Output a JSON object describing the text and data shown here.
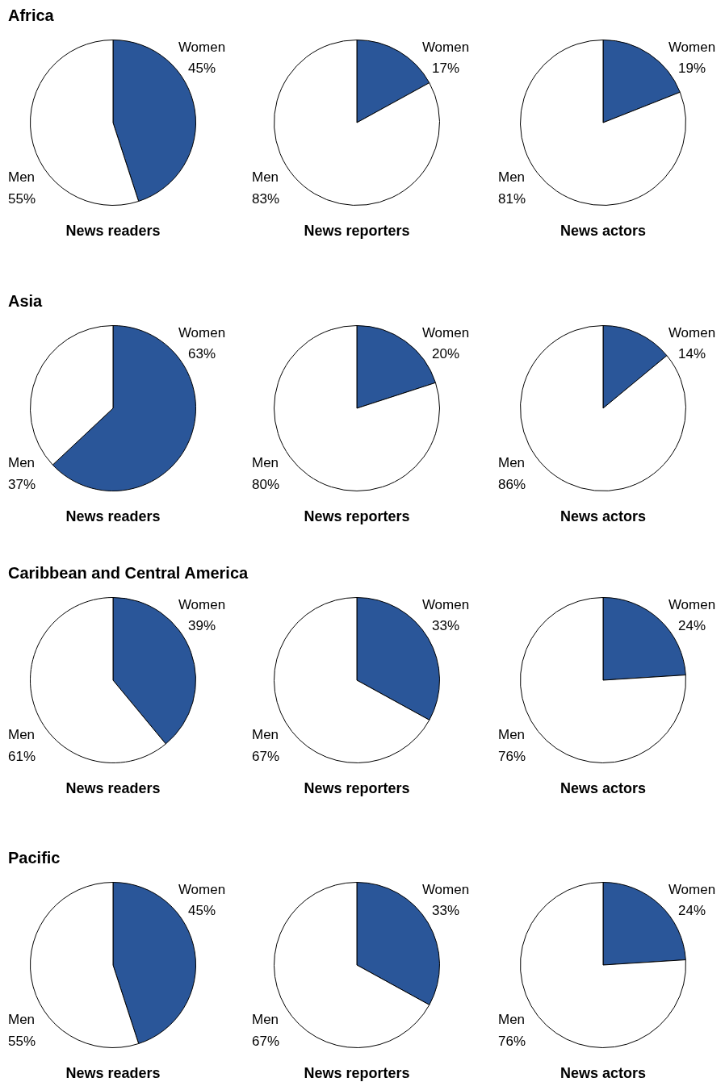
{
  "chart_data": [
    {
      "type": "pie",
      "title": "Africa",
      "subtitle": "News readers",
      "categories": [
        "Women",
        "Men"
      ],
      "values": [
        45,
        55
      ],
      "value_labels": [
        "45%",
        "55%"
      ],
      "colors": [
        "#2a5699",
        "#ffffff"
      ]
    },
    {
      "type": "pie",
      "subtitle": "News reporters",
      "categories": [
        "Women",
        "Men"
      ],
      "values": [
        17,
        83
      ],
      "value_labels": [
        "17%",
        "83%"
      ],
      "colors": [
        "#2a5699",
        "#ffffff"
      ]
    },
    {
      "type": "pie",
      "subtitle": "News actors",
      "categories": [
        "Women",
        "Men"
      ],
      "values": [
        19,
        81
      ],
      "value_labels": [
        "19%",
        "81%"
      ],
      "colors": [
        "#2a5699",
        "#ffffff"
      ]
    },
    {
      "type": "pie",
      "title": "Asia",
      "subtitle": "News readers",
      "categories": [
        "Women",
        "Men"
      ],
      "values": [
        63,
        37
      ],
      "value_labels": [
        "63%",
        "37%"
      ],
      "colors": [
        "#2a5699",
        "#ffffff"
      ]
    },
    {
      "type": "pie",
      "subtitle": "News reporters",
      "categories": [
        "Women",
        "Men"
      ],
      "values": [
        20,
        80
      ],
      "value_labels": [
        "20%",
        "80%"
      ],
      "colors": [
        "#2a5699",
        "#ffffff"
      ]
    },
    {
      "type": "pie",
      "subtitle": "News actors",
      "categories": [
        "Women",
        "Men"
      ],
      "values": [
        14,
        86
      ],
      "value_labels": [
        "14%",
        "86%"
      ],
      "colors": [
        "#2a5699",
        "#ffffff"
      ]
    },
    {
      "type": "pie",
      "title": "Caribbean and Central America",
      "subtitle": "News readers",
      "categories": [
        "Women",
        "Men"
      ],
      "values": [
        39,
        61
      ],
      "value_labels": [
        "39%",
        "61%"
      ],
      "colors": [
        "#2a5699",
        "#ffffff"
      ]
    },
    {
      "type": "pie",
      "subtitle": "News reporters",
      "categories": [
        "Women",
        "Men"
      ],
      "values": [
        33,
        67
      ],
      "value_labels": [
        "33%",
        "67%"
      ],
      "colors": [
        "#2a5699",
        "#ffffff"
      ]
    },
    {
      "type": "pie",
      "subtitle": "News actors",
      "categories": [
        "Women",
        "Men"
      ],
      "values": [
        24,
        76
      ],
      "value_labels": [
        "24%",
        "76%"
      ],
      "colors": [
        "#2a5699",
        "#ffffff"
      ]
    },
    {
      "type": "pie",
      "title": "Pacific",
      "subtitle": "News readers",
      "categories": [
        "Women",
        "Men"
      ],
      "values": [
        45,
        55
      ],
      "value_labels": [
        "45%",
        "55%"
      ],
      "colors": [
        "#2a5699",
        "#ffffff"
      ]
    },
    {
      "type": "pie",
      "subtitle": "News reporters",
      "categories": [
        "Women",
        "Men"
      ],
      "values": [
        33,
        67
      ],
      "value_labels": [
        "33%",
        "67%"
      ],
      "colors": [
        "#2a5699",
        "#ffffff"
      ]
    },
    {
      "type": "pie",
      "subtitle": "News actors",
      "categories": [
        "Women",
        "Men"
      ],
      "values": [
        24,
        76
      ],
      "value_labels": [
        "24%",
        "76%"
      ],
      "colors": [
        "#2a5699",
        "#ffffff"
      ]
    }
  ]
}
